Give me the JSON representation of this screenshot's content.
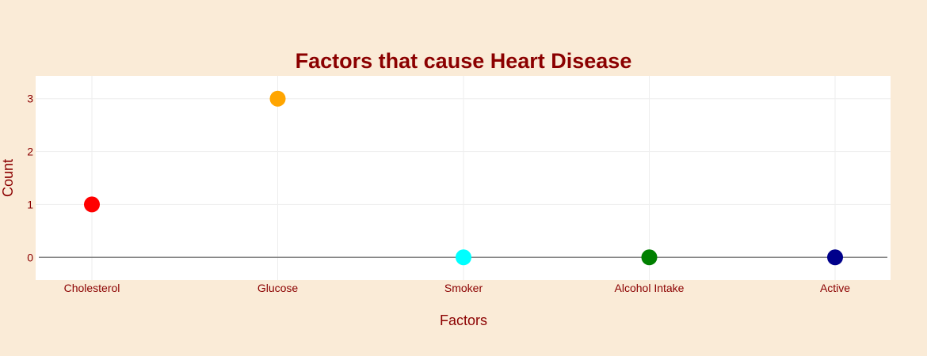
{
  "colors": {
    "paper_bg": "#faebd7",
    "plot_bg": "#ffffff",
    "text": "#8b0000",
    "grid": "#eeeeee",
    "zeroline": "#888888"
  },
  "chart_data": {
    "type": "scatter",
    "title": "Factors that cause Heart Disease",
    "xlabel": "Factors",
    "ylabel": "Count",
    "categories": [
      "Cholesterol",
      "Glucose",
      "Smoker",
      "Alcohol Intake",
      "Active"
    ],
    "values": [
      1,
      3,
      0,
      0,
      0
    ],
    "marker_colors": [
      "#ff0000",
      "#ffa500",
      "#00ffff",
      "#008000",
      "#00008b"
    ],
    "y_ticks": [
      0,
      1,
      2,
      3
    ],
    "ylim": [
      -0.43,
      3.43
    ],
    "grid": true,
    "legend": "none"
  }
}
